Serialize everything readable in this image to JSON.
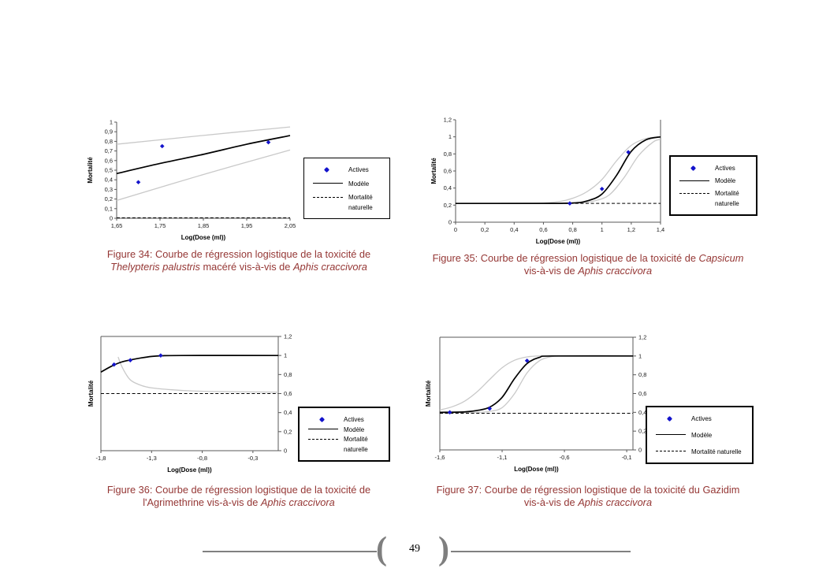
{
  "document": {
    "page_number": "49",
    "number_format": "comma-decimal",
    "footer": {
      "bracket_left": "(",
      "bracket_right": ")"
    }
  },
  "colors": {
    "caption_text": "#953735",
    "model_line": "#000000",
    "confidence_band": "#c9c9c9",
    "actives_point": "#1414cc",
    "natural_mortality_line": "#000000",
    "axis_line": "#595959",
    "footer_rule": "#808080"
  },
  "figures": [
    {
      "id": "34",
      "caption_lines": [
        [
          {
            "text": "Figure 34: Courbe de régression logistique de la toxicité de"
          }
        ],
        [
          {
            "text": "Thelypteris palustris",
            "italic": true
          },
          {
            "text": " macéré vis-à-vis de "
          },
          {
            "text": "Aphis craccivora",
            "italic": true
          }
        ]
      ],
      "legend": {
        "items": [
          {
            "marker": "diamond",
            "label": "Actives"
          },
          {
            "marker": "solid",
            "label": "Modèle"
          },
          {
            "marker": "dashed",
            "label": "Mortalité\nnaturelle"
          }
        ]
      },
      "chart_data": {
        "type": "scatter+line",
        "xlabel": "Log(Dose (ml))",
        "ylabel": "Mortalité",
        "xlim": [
          1.65,
          2.05
        ],
        "ylim": [
          0,
          1
        ],
        "xticks": [
          1.65,
          1.75,
          1.85,
          1.95,
          2.05
        ],
        "yticks": [
          0,
          0.1,
          0.2,
          0.3,
          0.4,
          0.5,
          0.6,
          0.7,
          0.8,
          0.9,
          1
        ],
        "y_axis_side": "left",
        "frame": [
          "left",
          "bottom"
        ],
        "grid": false,
        "series": {
          "actives_points": [
            [
              1.7,
              0.375
            ],
            [
              1.755,
              0.75
            ],
            [
              2.0,
              0.79
            ]
          ],
          "model": [
            [
              1.65,
              0.465
            ],
            [
              1.75,
              0.57
            ],
            [
              1.85,
              0.665
            ],
            [
              1.95,
              0.77
            ],
            [
              2.05,
              0.86
            ]
          ],
          "confidence_bands": [
            [
              [
                1.65,
                0.77
              ],
              [
                1.85,
                0.862
              ],
              [
                2.05,
                0.95
              ]
            ],
            [
              [
                1.65,
                0.185
              ],
              [
                1.85,
                0.455
              ],
              [
                2.05,
                0.71
              ]
            ]
          ],
          "natural_mortality": 0.005
        }
      }
    },
    {
      "id": "35",
      "caption_lines": [
        [
          {
            "text": "Figure 35: Courbe de régression logistique de la toxicité de "
          },
          {
            "text": "Capsicum",
            "italic": true
          }
        ],
        [
          {
            "text": "vis-à-vis de "
          },
          {
            "text": "Aphis craccivora",
            "italic": true
          }
        ]
      ],
      "legend": {
        "items": [
          {
            "marker": "diamond",
            "label": "Actives"
          },
          {
            "marker": "solid",
            "label": "Modèle"
          },
          {
            "marker": "dashed",
            "label": "Mortalité\nnaturelle"
          }
        ]
      },
      "chart_data": {
        "type": "scatter+line",
        "xlabel": "Log(Dose (ml))",
        "ylabel": "Mortalité",
        "xlim": [
          0,
          1.4
        ],
        "ylim": [
          0,
          1.2
        ],
        "xticks": [
          0,
          0.2,
          0.4,
          0.6,
          0.8,
          1,
          1.2,
          1.4
        ],
        "yticks": [
          0,
          0.2,
          0.4,
          0.6,
          0.8,
          1,
          1.2
        ],
        "y_axis_side": "left",
        "frame": [
          "left",
          "bottom",
          "right"
        ],
        "grid": false,
        "series": {
          "actives_points": [
            [
              0.78,
              0.22
            ],
            [
              1.0,
              0.39
            ],
            [
              1.18,
              0.82
            ]
          ],
          "model": [
            [
              0,
              0.22
            ],
            [
              0.6,
              0.22
            ],
            [
              0.8,
              0.225
            ],
            [
              0.9,
              0.25
            ],
            [
              1.0,
              0.33
            ],
            [
              1.1,
              0.55
            ],
            [
              1.2,
              0.83
            ],
            [
              1.3,
              0.965
            ],
            [
              1.4,
              1.0
            ]
          ],
          "confidence_bands": [
            [
              [
                0,
                0.22
              ],
              [
                0.55,
                0.225
              ],
              [
                0.7,
                0.24
              ],
              [
                0.8,
                0.28
              ],
              [
                0.9,
                0.36
              ],
              [
                1.0,
                0.5
              ],
              [
                1.1,
                0.72
              ],
              [
                1.2,
                0.9
              ],
              [
                1.3,
                0.98
              ],
              [
                1.4,
                1.0
              ]
            ],
            [
              [
                0,
                0.22
              ],
              [
                0.7,
                0.22
              ],
              [
                0.85,
                0.225
              ],
              [
                0.95,
                0.25
              ],
              [
                1.05,
                0.32
              ],
              [
                1.15,
                0.52
              ],
              [
                1.25,
                0.78
              ],
              [
                1.35,
                0.94
              ],
              [
                1.4,
                0.97
              ]
            ]
          ],
          "natural_mortality": 0.22
        }
      }
    },
    {
      "id": "36",
      "caption_lines": [
        [
          {
            "text": "Figure 36: Courbe de régression logistique de la toxicité de"
          }
        ],
        [
          {
            "text": "l'Agrimethrine vis-à-vis de "
          },
          {
            "text": "Aphis craccivora",
            "italic": true
          }
        ]
      ],
      "legend": {
        "items": [
          {
            "marker": "diamond",
            "label": "Actives"
          },
          {
            "marker": "solid",
            "label": "Modèle"
          },
          {
            "marker": "dashed",
            "label": "Mortalité\nnaturelle"
          }
        ]
      },
      "chart_data": {
        "type": "scatter+line",
        "xlabel": "Log(Dose (ml))",
        "ylabel": "Mortalité",
        "xlim": [
          -1.8,
          -0.05
        ],
        "ylim": [
          0,
          1.2
        ],
        "xticks": [
          -1.8,
          -1.3,
          -0.8,
          -0.3
        ],
        "yticks": [
          0,
          0.2,
          0.4,
          0.6,
          0.8,
          1,
          1.2
        ],
        "y_axis_side": "right",
        "frame": [
          "left",
          "top",
          "right",
          "bottom"
        ],
        "grid": false,
        "series": {
          "actives_points": [
            [
              -1.67,
              0.905
            ],
            [
              -1.51,
              0.95
            ],
            [
              -1.21,
              1.0
            ]
          ],
          "model": [
            [
              -1.8,
              0.825
            ],
            [
              -1.7,
              0.885
            ],
            [
              -1.6,
              0.93
            ],
            [
              -1.5,
              0.955
            ],
            [
              -1.4,
              0.975
            ],
            [
              -1.3,
              0.99
            ],
            [
              -1.2,
              0.997
            ],
            [
              -1.0,
              1.0
            ],
            [
              -0.05,
              1.0
            ]
          ],
          "confidence_bands": [
            [
              [
                -1.63,
                0.985
              ],
              [
                -1.6,
                0.9
              ],
              [
                -1.55,
                0.8
              ],
              [
                -1.5,
                0.735
              ],
              [
                -1.4,
                0.685
              ],
              [
                -1.3,
                0.66
              ],
              [
                -1.1,
                0.64
              ],
              [
                -0.9,
                0.628
              ],
              [
                -0.6,
                0.62
              ],
              [
                -0.05,
                0.615
              ]
            ]
          ],
          "natural_mortality": 0.6
        }
      }
    },
    {
      "id": "37",
      "caption_lines": [
        [
          {
            "text": "Figure 37: Courbe de régression logistique de la toxicité du Gazidim"
          }
        ],
        [
          {
            "text": "vis-à-vis de "
          },
          {
            "text": "Aphis craccivora",
            "italic": true
          }
        ]
      ],
      "legend": {
        "items": [
          {
            "marker": "diamond",
            "label": "Actives"
          },
          {
            "marker": "solid",
            "label": "Modèle"
          },
          {
            "marker": "dashed",
            "label": "Mortalité naturelle"
          }
        ]
      },
      "chart_data": {
        "type": "scatter+line",
        "xlabel": "Log(Dose (ml))",
        "ylabel": "Mortalité",
        "xlim": [
          -1.6,
          -0.05
        ],
        "ylim": [
          0,
          1.2
        ],
        "xticks": [
          -1.6,
          -1.1,
          -0.6,
          -0.1
        ],
        "yticks": [
          0,
          0.2,
          0.4,
          0.6,
          0.8,
          1,
          1.2
        ],
        "y_axis_side": "right",
        "frame": [
          "left",
          "top",
          "right",
          "bottom"
        ],
        "grid": false,
        "series": {
          "actives_points": [
            [
              -1.52,
              0.4
            ],
            [
              -1.2,
              0.44
            ],
            [
              -0.9,
              0.95
            ]
          ],
          "model": [
            [
              -1.6,
              0.4
            ],
            [
              -1.4,
              0.405
            ],
            [
              -1.3,
              0.42
            ],
            [
              -1.2,
              0.455
            ],
            [
              -1.1,
              0.56
            ],
            [
              -1.0,
              0.76
            ],
            [
              -0.9,
              0.92
            ],
            [
              -0.8,
              0.985
            ],
            [
              -0.7,
              1.0
            ],
            [
              -0.05,
              1.0
            ]
          ],
          "confidence_bands": [
            [
              [
                -1.6,
                0.425
              ],
              [
                -1.5,
                0.46
              ],
              [
                -1.4,
                0.52
              ],
              [
                -1.3,
                0.62
              ],
              [
                -1.2,
                0.75
              ],
              [
                -1.1,
                0.875
              ],
              [
                -1.0,
                0.955
              ],
              [
                -0.9,
                0.99
              ],
              [
                -0.8,
                1.0
              ],
              [
                -0.62,
                1.0
              ]
            ],
            [
              [
                -1.6,
                0.395
              ],
              [
                -1.4,
                0.398
              ],
              [
                -1.3,
                0.4
              ],
              [
                -1.2,
                0.41
              ],
              [
                -1.1,
                0.45
              ],
              [
                -1.0,
                0.6
              ],
              [
                -0.9,
                0.82
              ],
              [
                -0.8,
                0.95
              ],
              [
                -0.7,
                0.995
              ],
              [
                -0.62,
                1.0
              ]
            ]
          ],
          "natural_mortality": 0.39
        }
      }
    }
  ]
}
